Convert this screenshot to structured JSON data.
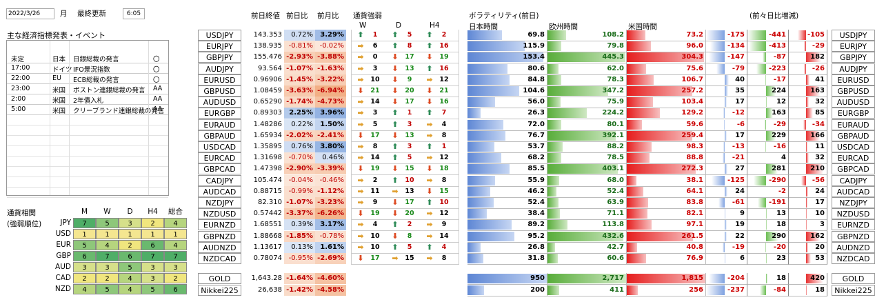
{
  "header": {
    "date": "2022/3/26",
    "weekday": "月",
    "last_update_label": "最終更新",
    "last_update_time": "6:05"
  },
  "events": {
    "title": "主な経済指標発表・イベント",
    "rows": [
      {
        "time": "未定",
        "country": "日本",
        "name": "日銀総裁の発言",
        "mark": "〇"
      },
      {
        "time": "17:00",
        "country": "ドイツ",
        "name": "IFO景況指数",
        "mark": "〇"
      },
      {
        "time": "22:00",
        "country": "EU",
        "name": "ECB総裁の発言",
        "mark": "〇"
      },
      {
        "time": "23:00",
        "country": "米国",
        "name": "ボストン連銀総裁の発言",
        "mark": "AA"
      },
      {
        "time": "2:00",
        "country": "米国",
        "name": "2年債入札",
        "mark": "AA"
      },
      {
        "time": "5:00",
        "country": "米国",
        "name": "クリーブランド連銀総裁の発言",
        "mark": "AA"
      }
    ]
  },
  "correlation": {
    "title1": "通貨相関",
    "title2": "(強弱順位)",
    "cols": [
      "M",
      "W",
      "D",
      "H4",
      "総合"
    ],
    "rows": [
      {
        "cur": "JPY",
        "vals": [
          7,
          5,
          3,
          2,
          4
        ]
      },
      {
        "cur": "USD",
        "vals": [
          1,
          1,
          1,
          1,
          1
        ]
      },
      {
        "cur": "EUR",
        "vals": [
          5,
          4,
          2,
          6,
          4
        ]
      },
      {
        "cur": "GBP",
        "vals": [
          6,
          7,
          6,
          7,
          7
        ]
      },
      {
        "cur": "AUD",
        "vals": [
          3,
          3,
          5,
          3,
          3
        ]
      },
      {
        "cur": "CAD",
        "vals": [
          2,
          2,
          4,
          3,
          2
        ]
      },
      {
        "cur": "NZD",
        "vals": [
          4,
          5,
          4,
          5,
          6
        ]
      }
    ]
  },
  "table_headers": {
    "prev_close": "前日終値",
    "day_change": "前日比",
    "month_change": "前月比",
    "strength": "通貨強弱",
    "W": "W",
    "D": "D",
    "H4": "H4",
    "volatility": "ボラティリティ(前日)",
    "tokyo": "日本時間",
    "europe": "欧州時間",
    "us": "米国時間",
    "diff": "(前々日比増減)"
  },
  "pairs": [
    {
      "pair": "USDJPY",
      "close": "143.353",
      "d": "0.72%",
      "m": "3.29%",
      "s": [
        "u",
        1,
        "u",
        5,
        "u",
        2
      ],
      "tk": "69.8",
      "eu": "108.2",
      "us": "73.2",
      "dt": "-175",
      "de": "-441",
      "du": "-105"
    },
    {
      "pair": "EURJPY",
      "close": "138.935",
      "d": "-0.81%",
      "m": "-0.02%",
      "s": [
        "r",
        6,
        "u",
        8,
        "u",
        16
      ],
      "tk": "115.9",
      "eu": "79.8",
      "us": "96.0",
      "dt": "-134",
      "de": "-413",
      "du": "-29"
    },
    {
      "pair": "GBPJPY",
      "close": "155.476",
      "d": "-2.93%",
      "m": "-3.88%",
      "s": [
        "r",
        0,
        "d",
        17,
        "d",
        19
      ],
      "tk": "153.4",
      "eu": "445.3",
      "us": "304.3",
      "dt": "-147",
      "de": "-87",
      "du": "182"
    },
    {
      "pair": "AUDJPY",
      "close": "93.564",
      "d": "-1.07%",
      "m": "-1.63%",
      "s": [
        "r",
        3,
        "d",
        13,
        "u",
        16
      ],
      "tk": "80.6",
      "eu": "62.0",
      "us": "75.6",
      "dt": "-79",
      "de": "-223",
      "du": "-26"
    },
    {
      "pair": "EURUSD",
      "close": "0.96906",
      "d": "-1.45%",
      "m": "-3.22%",
      "s": [
        "r",
        10,
        "d",
        9,
        "r",
        12
      ],
      "tk": "84.8",
      "eu": "78.3",
      "us": "106.7",
      "dt": "40",
      "de": "-17",
      "du": "41"
    },
    {
      "pair": "GBPUSD",
      "close": "1.08459",
      "d": "-3.63%",
      "m": "-6.94%",
      "s": [
        "d",
        21,
        "d",
        20,
        "d",
        21
      ],
      "tk": "104.6",
      "eu": "347.2",
      "us": "257.2",
      "dt": "35",
      "de": "224",
      "du": "163"
    },
    {
      "pair": "AUDUSD",
      "close": "0.65290",
      "d": "-1.74%",
      "m": "-4.73%",
      "s": [
        "r",
        14,
        "d",
        17,
        "d",
        16
      ],
      "tk": "56.0",
      "eu": "75.9",
      "us": "103.4",
      "dt": "17",
      "de": "12",
      "du": "32"
    },
    {
      "pair": "EURGBP",
      "close": "0.89303",
      "d": "2.25%",
      "m": "3.96%",
      "s": [
        "r",
        3,
        "u",
        1,
        "u",
        7
      ],
      "tk": "26.3",
      "eu": "224.2",
      "us": "129.2",
      "dt": "-12",
      "de": "163",
      "du": "85"
    },
    {
      "pair": "EURAUD",
      "close": "1.48286",
      "d": "0.22%",
      "m": "1.50%",
      "s": [
        "r",
        5,
        "u",
        3,
        "r",
        4
      ],
      "tk": "72.0",
      "eu": "80.1",
      "us": "59.6",
      "dt": "-6",
      "de": "-29",
      "du": "-34"
    },
    {
      "pair": "GBPAUD",
      "close": "1.65934",
      "d": "-2.02%",
      "m": "-2.41%",
      "s": [
        "d",
        17,
        "d",
        13,
        "r",
        8
      ],
      "tk": "76.7",
      "eu": "392.1",
      "us": "259.4",
      "dt": "17",
      "de": "229",
      "du": "166"
    },
    {
      "pair": "USDCAD",
      "close": "1.35895",
      "d": "0.76%",
      "m": "3.80%",
      "s": [
        "r",
        8,
        "u",
        3,
        "u",
        1
      ],
      "tk": "53.7",
      "eu": "88.2",
      "us": "98.3",
      "dt": "-13",
      "de": "-16",
      "du": "11"
    },
    {
      "pair": "EURCAD",
      "close": "1.31698",
      "d": "-0.70%",
      "m": "0.46%",
      "s": [
        "r",
        14,
        "u",
        5,
        "r",
        12
      ],
      "tk": "68.2",
      "eu": "78.5",
      "us": "88.8",
      "dt": "-21",
      "de": "4",
      "du": "32"
    },
    {
      "pair": "GBPCAD",
      "close": "1.47398",
      "d": "-2.90%",
      "m": "-3.39%",
      "s": [
        "d",
        19,
        "d",
        15,
        "d",
        18
      ],
      "tk": "85.5",
      "eu": "403.1",
      "us": "272.3",
      "dt": "27",
      "de": "281",
      "du": "210"
    },
    {
      "pair": "CADJPY",
      "close": "105.474",
      "d": "-0.04%",
      "m": "-0.46%",
      "s": [
        "r",
        2,
        "u",
        10,
        "r",
        8
      ],
      "tk": "55.9",
      "eu": "68.0",
      "us": "38.1",
      "dt": "-125",
      "de": "-290",
      "du": "-56"
    },
    {
      "pair": "AUDCAD",
      "close": "0.88715",
      "d": "-0.99%",
      "m": "-1.12%",
      "s": [
        "r",
        11,
        "r",
        13,
        "d",
        15
      ],
      "tk": "46.2",
      "eu": "52.4",
      "us": "64.1",
      "dt": "24",
      "de": "-2",
      "du": "24"
    },
    {
      "pair": "NZDJPY",
      "close": "82.310",
      "d": "-1.07%",
      "m": "-3.23%",
      "s": [
        "r",
        9,
        "d",
        17,
        "u",
        10
      ],
      "tk": "52.4",
      "eu": "63.9",
      "us": "83.8",
      "dt": "-61",
      "de": "-191",
      "du": "17"
    },
    {
      "pair": "NZDUSD",
      "close": "0.57442",
      "d": "-3.37%",
      "m": "-6.26%",
      "s": [
        "d",
        19,
        "d",
        20,
        "r",
        12
      ],
      "tk": "38.4",
      "eu": "71.1",
      "us": "82.1",
      "dt": "9",
      "de": "13",
      "du": "10"
    },
    {
      "pair": "EURNZD",
      "close": "1.68551",
      "d": "0.39%",
      "m": "3.17%",
      "s": [
        "r",
        4,
        "u",
        2,
        "r",
        9
      ],
      "tk": "89.2",
      "eu": "113.8",
      "us": "97.1",
      "dt": "19",
      "de": "18",
      "du": "3"
    },
    {
      "pair": "GBPNZD",
      "close": "1.88668",
      "d": "-1.85%",
      "m": "-0.78%",
      "s": [
        "r",
        10,
        "d",
        8,
        "r",
        14
      ],
      "tk": "95.2",
      "eu": "432.6",
      "us": "261.5",
      "dt": "22",
      "de": "290",
      "du": "162"
    },
    {
      "pair": "AUDNZD",
      "close": "1.13617",
      "d": "0.13%",
      "m": "1.61%",
      "s": [
        "r",
        10,
        "u",
        5,
        "u",
        4
      ],
      "tk": "26.8",
      "eu": "42.7",
      "us": "40.8",
      "dt": "-19",
      "de": "-20",
      "du": "20"
    },
    {
      "pair": "NZDCAD",
      "close": "0.78074",
      "d": "-0.95%",
      "m": "-2.69%",
      "s": [
        "d",
        17,
        "r",
        15,
        "r",
        8
      ],
      "tk": "31.8",
      "eu": "60.6",
      "us": "76.9",
      "dt": "6",
      "de": "23",
      "du": "53"
    }
  ],
  "extras": [
    {
      "pair": "GOLD",
      "close": "1,643.28",
      "d": "-1.64%",
      "m": "-4.60%",
      "tk": "950",
      "eu": "2,717",
      "us": "1,815",
      "dt": "-204",
      "de": "18",
      "du": "420"
    },
    {
      "pair": "Nikkei225",
      "close": "26,638",
      "d": "-1.42%",
      "m": "-4.58%",
      "tk": "200",
      "eu": "411",
      "us": "256",
      "dt": "-237",
      "de": "-84",
      "du": "18"
    }
  ],
  "colors": {
    "green": "#2e8b57",
    "red": "#cc2222",
    "orange": "#e08a30",
    "blue_bar": "#6f93d8",
    "green_bar": "#5ab040",
    "red_bar": "#e22222"
  }
}
